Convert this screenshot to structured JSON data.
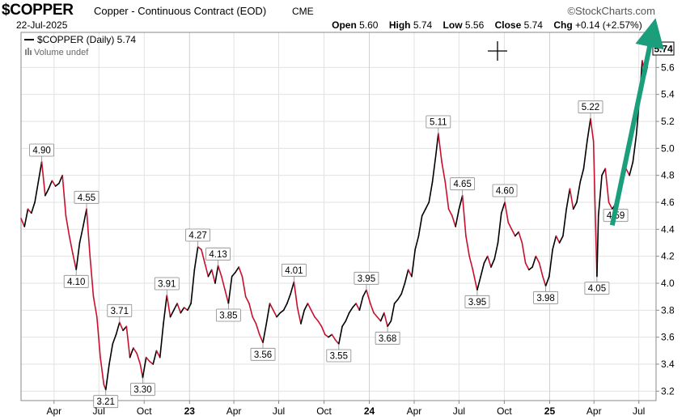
{
  "header": {
    "symbol": "$COPPER",
    "description": "Copper - Continuous Contract (EOD)",
    "exchange": "CME",
    "brand": "©StockCharts.com",
    "date": "22-Jul-2025",
    "open_label": "Open",
    "open_value": "5.60",
    "high_label": "High",
    "high_value": "5.74",
    "low_label": "Low",
    "low_value": "5.56",
    "close_label": "Close",
    "close_value": "5.74",
    "chg_label": "Chg",
    "chg_value": "+0.14 (+2.57%)",
    "up_icon": "triangle-up-icon"
  },
  "legend": {
    "price_text": "$COPPER (Daily) 5.74",
    "volume_text": "Volume undef",
    "last_price_tag": "5.74"
  },
  "colors": {
    "up": "#000000",
    "down": "#c8102e",
    "arrow": "#1a9e7c",
    "grid": "#e2e2e2",
    "label_border": "#888888"
  },
  "chart_data": {
    "type": "line",
    "title": "$COPPER (Daily)",
    "ylim": [
      3.13,
      5.86
    ],
    "y_ticks": [
      3.2,
      3.4,
      3.6,
      3.8,
      4.0,
      4.2,
      4.4,
      4.6,
      4.8,
      5.0,
      5.2,
      5.4,
      5.6
    ],
    "y_tick_labels": [
      "3.2",
      "3.4",
      "3.6",
      "3.8",
      "4.0",
      "4.2",
      "4.4",
      "4.6",
      "4.8",
      "5.0",
      "5.2",
      "5.4",
      "5.6"
    ],
    "x_range": [
      "2022-01-24",
      "2025-08-05"
    ],
    "x_ticks": [
      {
        "date": "2022-04-01",
        "label": "Apr"
      },
      {
        "date": "2022-07-01",
        "label": "Jul"
      },
      {
        "date": "2022-10-01",
        "label": "Oct"
      },
      {
        "date": "2023-01-01",
        "label": "23"
      },
      {
        "date": "2023-04-01",
        "label": "Apr"
      },
      {
        "date": "2023-07-01",
        "label": "Jul"
      },
      {
        "date": "2023-10-01",
        "label": "Oct"
      },
      {
        "date": "2024-01-01",
        "label": "24"
      },
      {
        "date": "2024-04-01",
        "label": "Apr"
      },
      {
        "date": "2024-07-01",
        "label": "Jul"
      },
      {
        "date": "2024-10-01",
        "label": "Oct"
      },
      {
        "date": "2025-01-01",
        "label": "25"
      },
      {
        "date": "2025-04-01",
        "label": "Apr"
      },
      {
        "date": "2025-07-01",
        "label": "Jul"
      }
    ],
    "series": [
      {
        "name": "$COPPER",
        "points": [
          [
            "2022-01-24",
            4.48
          ],
          [
            "2022-01-31",
            4.42
          ],
          [
            "2022-02-07",
            4.55
          ],
          [
            "2022-02-14",
            4.52
          ],
          [
            "2022-02-21",
            4.6
          ],
          [
            "2022-02-28",
            4.75
          ],
          [
            "2022-03-07",
            4.9
          ],
          [
            "2022-03-14",
            4.65
          ],
          [
            "2022-03-21",
            4.7
          ],
          [
            "2022-03-28",
            4.76
          ],
          [
            "2022-04-04",
            4.72
          ],
          [
            "2022-04-11",
            4.74
          ],
          [
            "2022-04-18",
            4.8
          ],
          [
            "2022-04-25",
            4.5
          ],
          [
            "2022-05-02",
            4.35
          ],
          [
            "2022-05-09",
            4.22
          ],
          [
            "2022-05-16",
            4.1
          ],
          [
            "2022-05-23",
            4.3
          ],
          [
            "2022-05-30",
            4.42
          ],
          [
            "2022-06-06",
            4.55
          ],
          [
            "2022-06-13",
            4.2
          ],
          [
            "2022-06-20",
            3.9
          ],
          [
            "2022-06-27",
            3.75
          ],
          [
            "2022-07-04",
            3.45
          ],
          [
            "2022-07-11",
            3.25
          ],
          [
            "2022-07-15",
            3.21
          ],
          [
            "2022-07-22",
            3.4
          ],
          [
            "2022-07-29",
            3.55
          ],
          [
            "2022-08-05",
            3.62
          ],
          [
            "2022-08-12",
            3.71
          ],
          [
            "2022-08-19",
            3.65
          ],
          [
            "2022-08-26",
            3.68
          ],
          [
            "2022-09-02",
            3.45
          ],
          [
            "2022-09-09",
            3.52
          ],
          [
            "2022-09-16",
            3.48
          ],
          [
            "2022-09-23",
            3.4
          ],
          [
            "2022-09-28",
            3.3
          ],
          [
            "2022-10-05",
            3.45
          ],
          [
            "2022-10-12",
            3.42
          ],
          [
            "2022-10-19",
            3.4
          ],
          [
            "2022-10-26",
            3.5
          ],
          [
            "2022-11-02",
            3.45
          ],
          [
            "2022-11-09",
            3.7
          ],
          [
            "2022-11-16",
            3.91
          ],
          [
            "2022-11-23",
            3.75
          ],
          [
            "2022-11-30",
            3.8
          ],
          [
            "2022-12-07",
            3.85
          ],
          [
            "2022-12-14",
            3.78
          ],
          [
            "2022-12-21",
            3.82
          ],
          [
            "2022-12-28",
            3.8
          ],
          [
            "2023-01-04",
            3.85
          ],
          [
            "2023-01-11",
            4.1
          ],
          [
            "2023-01-18",
            4.27
          ],
          [
            "2023-01-25",
            4.25
          ],
          [
            "2023-02-01",
            4.15
          ],
          [
            "2023-02-08",
            4.05
          ],
          [
            "2023-02-15",
            4.1
          ],
          [
            "2023-02-22",
            4.0
          ],
          [
            "2023-02-28",
            4.13
          ],
          [
            "2023-03-07",
            4.05
          ],
          [
            "2023-03-14",
            3.95
          ],
          [
            "2023-03-21",
            3.85
          ],
          [
            "2023-03-28",
            4.05
          ],
          [
            "2023-04-04",
            4.08
          ],
          [
            "2023-04-11",
            4.12
          ],
          [
            "2023-04-18",
            4.05
          ],
          [
            "2023-04-25",
            3.9
          ],
          [
            "2023-05-02",
            3.85
          ],
          [
            "2023-05-09",
            3.75
          ],
          [
            "2023-05-16",
            3.7
          ],
          [
            "2023-05-23",
            3.62
          ],
          [
            "2023-05-30",
            3.56
          ],
          [
            "2023-06-06",
            3.7
          ],
          [
            "2023-06-13",
            3.85
          ],
          [
            "2023-06-20",
            3.8
          ],
          [
            "2023-06-27",
            3.75
          ],
          [
            "2023-07-04",
            3.78
          ],
          [
            "2023-07-11",
            3.8
          ],
          [
            "2023-07-18",
            3.85
          ],
          [
            "2023-07-25",
            3.92
          ],
          [
            "2023-08-01",
            4.01
          ],
          [
            "2023-08-08",
            3.82
          ],
          [
            "2023-08-15",
            3.7
          ],
          [
            "2023-08-22",
            3.8
          ],
          [
            "2023-08-29",
            3.85
          ],
          [
            "2023-09-05",
            3.8
          ],
          [
            "2023-09-12",
            3.75
          ],
          [
            "2023-09-19",
            3.72
          ],
          [
            "2023-09-26",
            3.68
          ],
          [
            "2023-10-03",
            3.62
          ],
          [
            "2023-10-10",
            3.6
          ],
          [
            "2023-10-17",
            3.62
          ],
          [
            "2023-10-24",
            3.58
          ],
          [
            "2023-10-31",
            3.55
          ],
          [
            "2023-11-07",
            3.68
          ],
          [
            "2023-11-14",
            3.72
          ],
          [
            "2023-11-21",
            3.78
          ],
          [
            "2023-11-28",
            3.82
          ],
          [
            "2023-12-05",
            3.85
          ],
          [
            "2023-12-12",
            3.8
          ],
          [
            "2023-12-19",
            3.9
          ],
          [
            "2023-12-26",
            3.95
          ],
          [
            "2024-01-03",
            3.85
          ],
          [
            "2024-01-10",
            3.78
          ],
          [
            "2024-01-17",
            3.75
          ],
          [
            "2024-01-24",
            3.72
          ],
          [
            "2024-01-31",
            3.78
          ],
          [
            "2024-02-07",
            3.68
          ],
          [
            "2024-02-14",
            3.72
          ],
          [
            "2024-02-21",
            3.85
          ],
          [
            "2024-02-28",
            3.88
          ],
          [
            "2024-03-06",
            3.92
          ],
          [
            "2024-03-13",
            4.0
          ],
          [
            "2024-03-20",
            4.1
          ],
          [
            "2024-03-27",
            4.05
          ],
          [
            "2024-04-03",
            4.25
          ],
          [
            "2024-04-10",
            4.35
          ],
          [
            "2024-04-17",
            4.5
          ],
          [
            "2024-04-24",
            4.55
          ],
          [
            "2024-05-01",
            4.6
          ],
          [
            "2024-05-08",
            4.75
          ],
          [
            "2024-05-15",
            4.95
          ],
          [
            "2024-05-20",
            5.11
          ],
          [
            "2024-05-27",
            4.9
          ],
          [
            "2024-06-03",
            4.75
          ],
          [
            "2024-06-10",
            4.55
          ],
          [
            "2024-06-17",
            4.5
          ],
          [
            "2024-06-24",
            4.42
          ],
          [
            "2024-07-01",
            4.55
          ],
          [
            "2024-07-08",
            4.65
          ],
          [
            "2024-07-15",
            4.35
          ],
          [
            "2024-07-22",
            4.2
          ],
          [
            "2024-07-29",
            4.1
          ],
          [
            "2024-08-05",
            3.98
          ],
          [
            "2024-08-07",
            3.95
          ],
          [
            "2024-08-14",
            4.05
          ],
          [
            "2024-08-21",
            4.15
          ],
          [
            "2024-08-28",
            4.2
          ],
          [
            "2024-09-04",
            4.12
          ],
          [
            "2024-09-11",
            4.18
          ],
          [
            "2024-09-18",
            4.3
          ],
          [
            "2024-09-25",
            4.52
          ],
          [
            "2024-10-02",
            4.6
          ],
          [
            "2024-10-09",
            4.45
          ],
          [
            "2024-10-16",
            4.4
          ],
          [
            "2024-10-23",
            4.35
          ],
          [
            "2024-10-30",
            4.38
          ],
          [
            "2024-11-06",
            4.3
          ],
          [
            "2024-11-13",
            4.15
          ],
          [
            "2024-11-20",
            4.1
          ],
          [
            "2024-11-27",
            4.12
          ],
          [
            "2024-12-04",
            4.2
          ],
          [
            "2024-12-11",
            4.15
          ],
          [
            "2024-12-18",
            4.05
          ],
          [
            "2024-12-24",
            3.98
          ],
          [
            "2024-12-31",
            4.05
          ],
          [
            "2025-01-07",
            4.25
          ],
          [
            "2025-01-14",
            4.35
          ],
          [
            "2025-01-21",
            4.3
          ],
          [
            "2025-01-28",
            4.35
          ],
          [
            "2025-02-04",
            4.55
          ],
          [
            "2025-02-11",
            4.7
          ],
          [
            "2025-02-18",
            4.55
          ],
          [
            "2025-02-25",
            4.6
          ],
          [
            "2025-03-04",
            4.75
          ],
          [
            "2025-03-11",
            4.85
          ],
          [
            "2025-03-18",
            5.05
          ],
          [
            "2025-03-25",
            5.22
          ],
          [
            "2025-03-31",
            5.05
          ],
          [
            "2025-04-03",
            4.6
          ],
          [
            "2025-04-07",
            4.05
          ],
          [
            "2025-04-10",
            4.5
          ],
          [
            "2025-04-17",
            4.8
          ],
          [
            "2025-04-24",
            4.85
          ],
          [
            "2025-05-01",
            4.6
          ],
          [
            "2025-05-08",
            4.55
          ],
          [
            "2025-05-15",
            4.59
          ],
          [
            "2025-05-22",
            4.7
          ],
          [
            "2025-05-29",
            4.75
          ],
          [
            "2025-06-05",
            4.85
          ],
          [
            "2025-06-12",
            4.8
          ],
          [
            "2025-06-19",
            4.9
          ],
          [
            "2025-06-26",
            5.1
          ],
          [
            "2025-07-03",
            5.4
          ],
          [
            "2025-07-08",
            5.65
          ],
          [
            "2025-07-11",
            5.6
          ],
          [
            "2025-07-15",
            5.55
          ],
          [
            "2025-07-18",
            5.6
          ],
          [
            "2025-07-22",
            5.74
          ]
        ]
      }
    ],
    "annotations": [
      {
        "date": "2022-03-07",
        "value": 4.9,
        "text": "4.90",
        "pos": "above"
      },
      {
        "date": "2022-05-16",
        "value": 4.1,
        "text": "4.10",
        "pos": "below"
      },
      {
        "date": "2022-06-06",
        "value": 4.55,
        "text": "4.55",
        "pos": "above"
      },
      {
        "date": "2022-07-15",
        "value": 3.21,
        "text": "3.21",
        "pos": "below"
      },
      {
        "date": "2022-08-12",
        "value": 3.71,
        "text": "3.71",
        "pos": "above"
      },
      {
        "date": "2022-09-28",
        "value": 3.3,
        "text": "3.30",
        "pos": "below"
      },
      {
        "date": "2022-11-16",
        "value": 3.91,
        "text": "3.91",
        "pos": "above"
      },
      {
        "date": "2023-01-18",
        "value": 4.27,
        "text": "4.27",
        "pos": "above"
      },
      {
        "date": "2023-02-28",
        "value": 4.13,
        "text": "4.13",
        "pos": "above"
      },
      {
        "date": "2023-03-21",
        "value": 3.85,
        "text": "3.85",
        "pos": "below"
      },
      {
        "date": "2023-05-30",
        "value": 3.56,
        "text": "3.56",
        "pos": "below"
      },
      {
        "date": "2023-08-01",
        "value": 4.01,
        "text": "4.01",
        "pos": "above"
      },
      {
        "date": "2023-10-31",
        "value": 3.55,
        "text": "3.55",
        "pos": "below"
      },
      {
        "date": "2023-12-26",
        "value": 3.95,
        "text": "3.95",
        "pos": "above"
      },
      {
        "date": "2024-02-07",
        "value": 3.68,
        "text": "3.68",
        "pos": "below"
      },
      {
        "date": "2024-05-20",
        "value": 5.11,
        "text": "5.11",
        "pos": "above"
      },
      {
        "date": "2024-07-08",
        "value": 4.65,
        "text": "4.65",
        "pos": "above"
      },
      {
        "date": "2024-08-07",
        "value": 3.95,
        "text": "3.95",
        "pos": "below"
      },
      {
        "date": "2024-10-02",
        "value": 4.6,
        "text": "4.60",
        "pos": "above"
      },
      {
        "date": "2024-12-24",
        "value": 3.98,
        "text": "3.98",
        "pos": "below"
      },
      {
        "date": "2025-03-25",
        "value": 5.22,
        "text": "5.22",
        "pos": "above"
      },
      {
        "date": "2025-04-07",
        "value": 4.05,
        "text": "4.05",
        "pos": "below"
      },
      {
        "date": "2025-05-15",
        "value": 4.59,
        "text": "4.59",
        "pos": "below"
      }
    ],
    "trend_arrow": {
      "from": [
        "2025-05-08",
        4.43
      ],
      "to": [
        "2025-07-29",
        5.86
      ]
    },
    "grid": true,
    "legend_position": "top-left"
  }
}
